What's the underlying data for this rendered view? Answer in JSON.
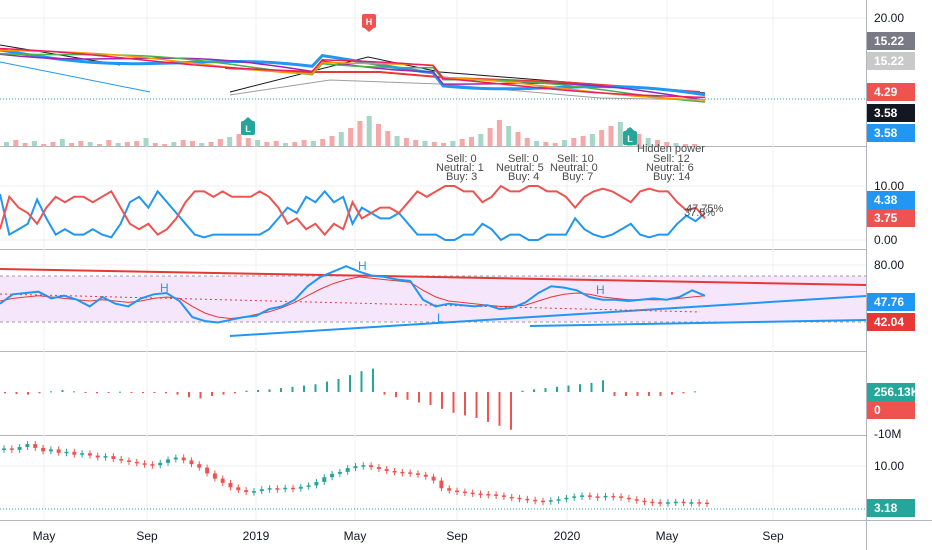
{
  "colors": {
    "up": "#26a69a",
    "down": "#ef5350",
    "blue": "#2196f3",
    "red": "#e53935",
    "volUp": "#a5d6c8",
    "volDown": "#f4a9a8",
    "grid": "#e6e6e6",
    "pink": "#f3e5f5"
  },
  "time_axis": [
    "May",
    "Sep",
    "2019",
    "May",
    "Sep",
    "2020",
    "May",
    "Sep"
  ],
  "annotations": {
    "signals": [
      {
        "sell": "Sell: 0",
        "neutral": "Neutral: 1",
        "buy": "Buy: 3"
      },
      {
        "sell": "Sell: 0",
        "neutral": "Neutral: 5",
        "buy": "Buy: 4"
      },
      {
        "sell": "Sell: 10",
        "neutral": "Neutral: 0",
        "buy": "Buy: 7"
      },
      {
        "sell": "Sell: 12",
        "neutral": "Neutral: 6",
        "buy": "Buy: 14"
      }
    ],
    "hidden_power": "Hidden power",
    "pct_a": "47.75%",
    "pct_b": "37.5%",
    "pattern_labels": [
      "H",
      "H",
      "H",
      "L"
    ],
    "markers": [
      "L",
      "L",
      "H"
    ]
  },
  "chart_data": [
    {
      "type": "line",
      "pane": "price",
      "yticks": [
        "20.00"
      ],
      "price_tags": [
        {
          "label": "15.22",
          "color": "#787b86"
        },
        {
          "label": "15.22",
          "color": "#c9c9c9"
        },
        {
          "label": "4.29",
          "color": "#ef5350"
        },
        {
          "label": "3.58",
          "color": "#131722"
        },
        {
          "label": "3.58",
          "color": "#2196f3"
        }
      ]
    },
    {
      "type": "line",
      "pane": "signals",
      "yticks": [
        "10.00",
        "0.00"
      ],
      "ylim": [
        0,
        10
      ],
      "series": [
        {
          "name": "",
          "color": "#2196f3",
          "values": [
            8.5,
            1,
            2,
            3,
            7.5,
            4,
            1,
            2,
            1,
            1,
            2,
            1,
            0.5,
            3,
            7,
            8,
            6,
            9,
            7,
            5,
            3,
            1,
            0.5,
            1,
            1,
            1,
            1,
            1,
            1,
            2,
            4,
            6,
            5,
            8,
            7,
            9,
            7,
            8,
            3,
            6,
            5,
            4,
            4,
            5,
            3,
            1,
            1,
            1,
            0,
            0,
            1,
            1,
            3,
            2,
            0,
            1,
            1,
            0,
            0,
            1,
            1,
            1,
            4,
            2,
            1,
            0.5,
            1,
            2,
            3,
            1,
            0.5,
            1,
            1,
            3,
            4.5,
            3.5,
            5
          ]
        },
        {
          "name": "",
          "color": "#ef5350",
          "values": [
            2,
            8,
            6,
            5,
            3,
            6,
            8,
            7,
            8,
            8,
            7,
            8,
            9,
            6,
            3,
            2,
            3,
            1,
            2,
            4,
            7,
            9,
            9,
            8,
            9,
            8,
            8,
            8,
            9,
            8,
            6,
            3,
            4,
            2,
            3,
            1,
            3,
            2,
            7,
            4,
            5,
            6,
            6,
            5,
            7,
            9,
            8,
            9,
            10,
            10,
            9,
            9,
            7,
            8,
            10,
            9,
            9,
            10,
            10,
            9,
            9,
            8,
            6,
            8,
            9,
            9.5,
            9,
            8,
            7,
            9,
            9.5,
            9,
            9,
            7,
            5.5,
            6,
            4
          ]
        }
      ],
      "tags": [
        {
          "label": "4.38",
          "color": "#2196f3"
        },
        {
          "label": "3.75",
          "color": "#ef5350"
        }
      ]
    },
    {
      "type": "line",
      "pane": "rsi",
      "yticks": [
        "80.00"
      ],
      "series": [
        {
          "name": "",
          "color": "#2196f3",
          "values": [
            42,
            49,
            50,
            51,
            46,
            48,
            45,
            40,
            47,
            42,
            40,
            46,
            49,
            50,
            44,
            32,
            29,
            28,
            30,
            32,
            33,
            38,
            40,
            45,
            55,
            62,
            66,
            70,
            66,
            63,
            62,
            60,
            59,
            45,
            40,
            42,
            41,
            40,
            41,
            38,
            39,
            43,
            50,
            55,
            54,
            52,
            47,
            45,
            45,
            44,
            45,
            46,
            45,
            47,
            52,
            48
          ]
        },
        {
          "name": "",
          "color": "#e53935",
          "values": [
            44,
            46,
            47,
            48,
            47,
            46,
            45,
            44,
            45,
            44,
            43,
            44,
            46,
            47,
            46,
            40,
            35,
            32,
            31,
            32,
            34,
            36,
            39,
            43,
            48,
            53,
            57,
            60,
            62,
            61,
            60,
            59,
            58,
            52,
            47,
            44,
            43,
            42,
            41,
            40,
            40,
            41,
            44,
            47,
            49,
            50,
            49,
            47,
            46,
            45,
            45,
            45,
            45,
            46,
            47,
            48
          ]
        }
      ],
      "tags": [
        {
          "label": "47.76",
          "color": "#2196f3"
        },
        {
          "label": "42.04",
          "color": "#e53935"
        }
      ]
    },
    {
      "type": "bar",
      "pane": "histogram",
      "yticks": [
        "-10M"
      ],
      "values": [
        -0.1,
        -0.15,
        -0.2,
        -0.1,
        0.05,
        0.15,
        0.05,
        -0.05,
        -0.1,
        -0.05,
        0.02,
        -0.02,
        -0.05,
        -0.05,
        -0.1,
        -0.2,
        -0.4,
        -0.5,
        -0.3,
        -0.2,
        -0.1,
        0.1,
        0.15,
        0.2,
        0.3,
        0.4,
        0.5,
        0.6,
        0.8,
        1.0,
        1.3,
        1.6,
        1.8,
        -0.2,
        -0.4,
        -0.6,
        -0.8,
        -1.0,
        -1.3,
        -1.6,
        -1.8,
        -2.0,
        -2.3,
        -2.6,
        -2.9,
        0.1,
        0.2,
        0.3,
        0.4,
        0.5,
        0.6,
        0.7,
        0.9,
        -0.3,
        -0.3,
        -0.3,
        -0.3,
        -0.3,
        -0.2,
        -0.1,
        0.05
      ],
      "tags": [
        {
          "label": "256.13K",
          "color": "#26a69a"
        },
        {
          "label": "0",
          "color": "#ef5350"
        }
      ]
    },
    {
      "type": "line",
      "pane": "candles",
      "yticks": [
        "10.00"
      ],
      "values": [
        14.5,
        14.2,
        14.8,
        15.4,
        14.6,
        13.9,
        14.3,
        13.6,
        13.8,
        13.2,
        13.5,
        13.0,
        12.6,
        12.9,
        12.3,
        12.0,
        11.7,
        11.4,
        11.2,
        11.0,
        11.5,
        12.2,
        12.6,
        12.0,
        11.2,
        10.5,
        9.3,
        8.2,
        7.3,
        6.4,
        5.8,
        5.4,
        5.6,
        6.0,
        6.2,
        6.0,
        6.3,
        6.1,
        6.5,
        6.8,
        7.5,
        8.5,
        9.2,
        9.6,
        10.4,
        10.8,
        11.0,
        10.6,
        10.2,
        9.8,
        9.6,
        9.5,
        9.3,
        9.0,
        8.6,
        7.8,
        6.2,
        5.7,
        5.5,
        5.3,
        5.1,
        5.0,
        4.9,
        4.7,
        4.4,
        4.2,
        4.0,
        3.8,
        3.6,
        3.5,
        3.7,
        3.9,
        4.2,
        4.5,
        4.7,
        4.5,
        4.4,
        4.6,
        4.5,
        4.2,
        3.9,
        3.6,
        3.4,
        3.3,
        3.2,
        3.3,
        3.4,
        3.2,
        3.3,
        3.2,
        3.18
      ],
      "tags": [
        {
          "label": "3.18",
          "color": "#26a69a"
        }
      ]
    }
  ]
}
